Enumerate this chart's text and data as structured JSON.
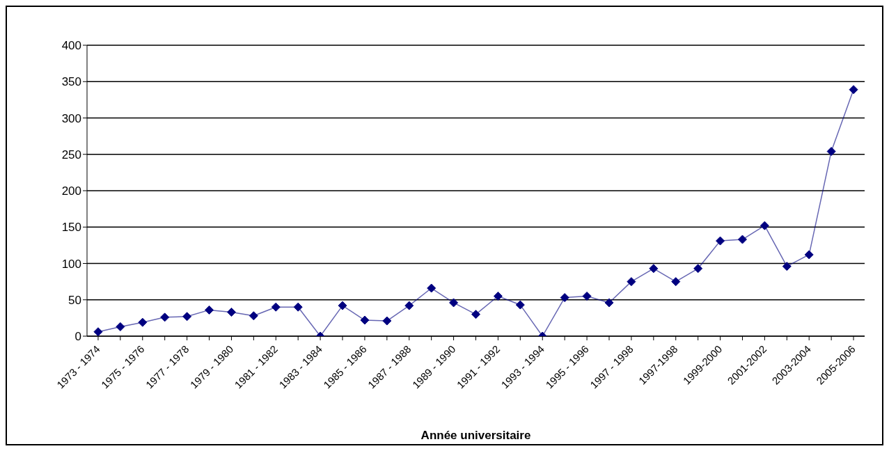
{
  "chart_data": {
    "type": "line",
    "xlabel": "Année universitaire",
    "categories": [
      "1973 - 1974",
      null,
      "1975 - 1976",
      null,
      "1977 - 1978",
      null,
      "1979 - 1980",
      null,
      "1981 - 1982",
      null,
      "1983 - 1984",
      null,
      "1985 - 1986",
      null,
      "1987 - 1988",
      null,
      "1989 - 1990",
      null,
      "1991 - 1992",
      null,
      "1993 - 1994",
      null,
      "1995 - 1996",
      null,
      "1997 - 1998",
      null,
      "1997-1998",
      null,
      "1999-2000",
      null,
      "2001-2002",
      null,
      "2003-2004",
      null,
      "2005-2006"
    ],
    "series": [
      {
        "color": "#000080",
        "values": [
          6,
          13,
          19,
          26,
          27,
          36,
          33,
          28,
          40,
          40,
          0,
          42,
          22,
          21,
          42,
          66,
          46,
          30,
          55,
          43,
          0,
          53,
          55,
          46,
          75,
          93,
          75,
          93,
          131,
          133,
          152,
          96,
          112,
          254,
          339
        ]
      }
    ],
    "ylim": [
      0,
      400
    ],
    "yticks": [
      0,
      50,
      100,
      150,
      200,
      250,
      300,
      350,
      400
    ],
    "grid": "y",
    "marker": "diamond",
    "line_style": "solid"
  }
}
